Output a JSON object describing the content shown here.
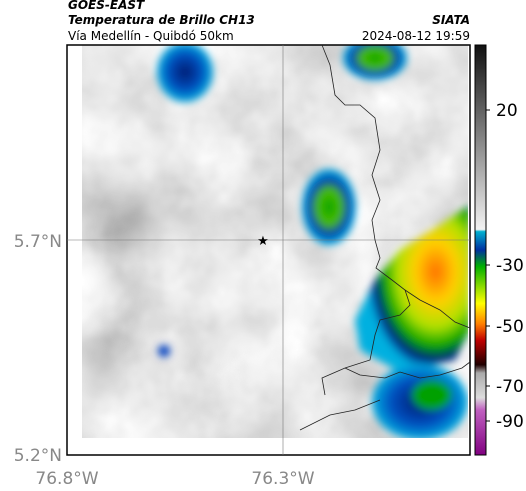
{
  "header": {
    "satellite": "GOES-EAST",
    "product": "Temperatura de Brillo CH13",
    "location": "Vía Medellín - Quibdó 50km",
    "source": "SIATA",
    "datetime": "2024-08-12 19:59"
  },
  "axes": {
    "lat_labels": [
      "5.7°N",
      "5.2°N"
    ],
    "lon_labels": [
      "76.8°W",
      "76.3°W"
    ]
  },
  "colorbar": {
    "tick_labels": [
      "20",
      "-30",
      "-50",
      "-70",
      "-90"
    ]
  }
}
